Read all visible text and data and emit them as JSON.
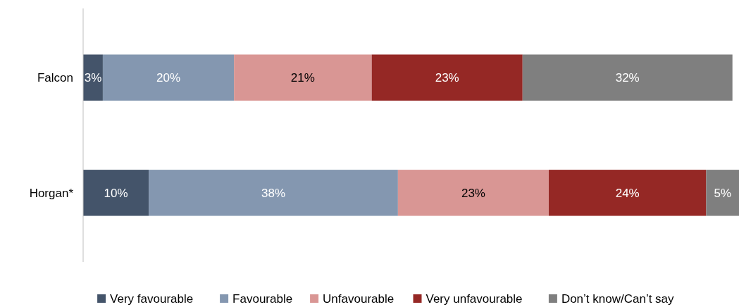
{
  "chart_data": {
    "type": "bar",
    "orientation": "horizontal",
    "stacked": true,
    "legend": "bottom",
    "categories": [
      "Falcon",
      "Horgan*"
    ],
    "series": [
      {
        "name": "Very favourable",
        "color": "#44546a",
        "values": [
          3,
          10
        ],
        "value_labels": [
          "3%",
          "10%"
        ]
      },
      {
        "name": "Favourable",
        "color": "#8497b0",
        "values": [
          20,
          38
        ],
        "value_labels": [
          "20%",
          "38%"
        ]
      },
      {
        "name": "Unfavourable",
        "color": "#d99694",
        "values": [
          21,
          23
        ],
        "value_labels": [
          "21%",
          "23%"
        ]
      },
      {
        "name": "Very unfavourable",
        "color": "#952825",
        "values": [
          23,
          24
        ],
        "value_labels": [
          "23%",
          "24%"
        ]
      },
      {
        "name": "Don’t know/Can’t say",
        "color": "#7f7f7f",
        "values": [
          32,
          5
        ],
        "value_labels": [
          "32%",
          "5%"
        ]
      }
    ]
  }
}
